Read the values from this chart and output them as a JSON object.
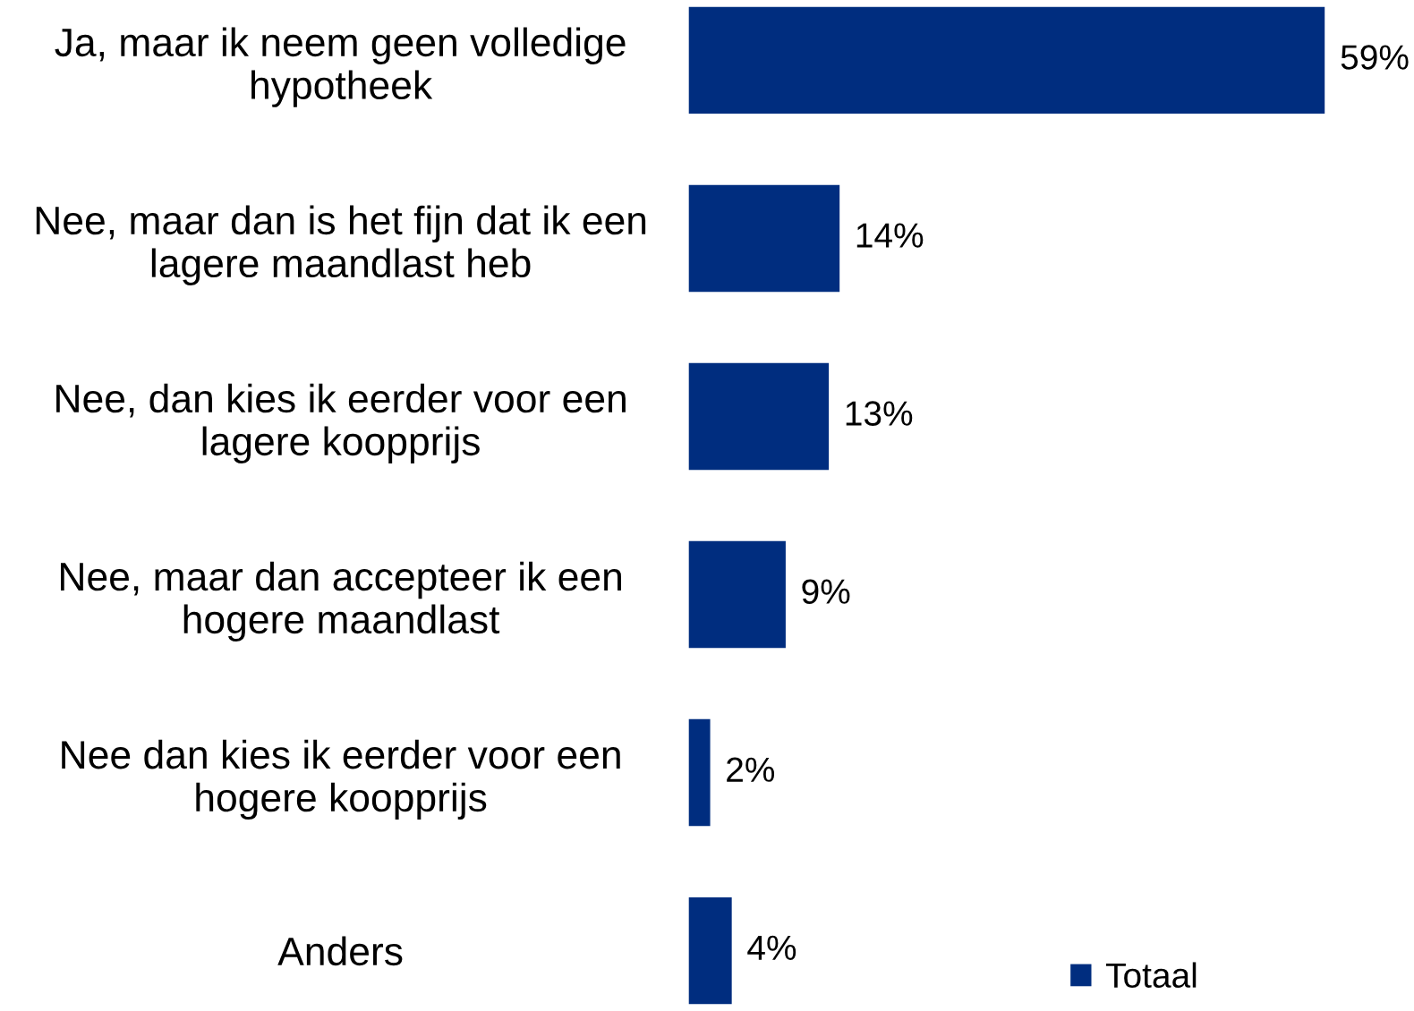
{
  "chart_data": {
    "type": "bar",
    "orientation": "horizontal",
    "legend": "bottom right",
    "grid": false,
    "categories": [
      "Ja, maar ik neem geen volledige\nhypotheek",
      "Nee, maar dan is het fijn dat ik een\nlagere maandlast heb",
      "Nee, dan kies ik eerder voor een\nlagere koopprijs",
      "Nee, maar dan accepteer ik een\nhogere maandlast",
      "Nee dan kies ik eerder voor een\nhogere koopprijs",
      "Anders"
    ],
    "series": [
      {
        "name": "Totaal",
        "color": "#002d7f",
        "values": [
          59,
          14,
          13,
          9,
          2,
          4
        ],
        "value_labels": [
          "59%",
          "14%",
          "13%",
          "9%",
          "2%",
          "4%"
        ]
      }
    ]
  }
}
